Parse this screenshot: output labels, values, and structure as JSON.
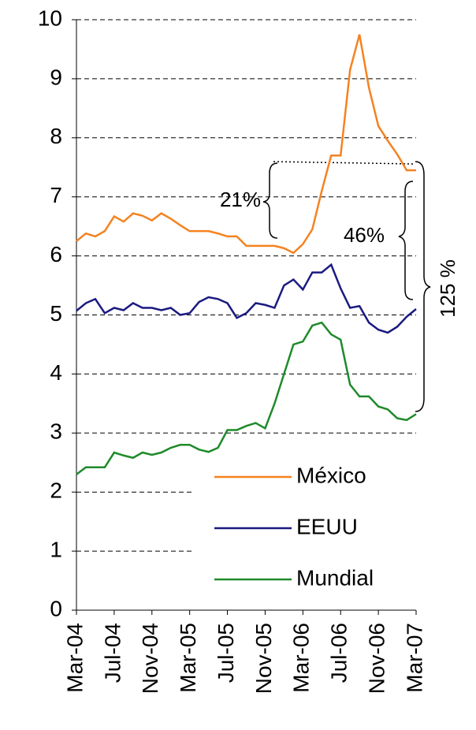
{
  "chart_data": {
    "type": "line",
    "categories": [
      "Mar-04",
      null,
      null,
      null,
      "Jul-04",
      null,
      null,
      null,
      "Nov-04",
      null,
      null,
      null,
      "Mar-05",
      null,
      null,
      null,
      "Jul-05",
      null,
      null,
      null,
      "Nov-05",
      null,
      null,
      null,
      "Mar-06",
      null,
      null,
      null,
      "Jul-06",
      null,
      null,
      null,
      "Nov-06",
      null,
      null,
      null,
      "Mar-07"
    ],
    "series": [
      {
        "name": "México",
        "color": "#f58220",
        "values": [
          6.25,
          6.38,
          6.33,
          6.42,
          6.67,
          6.58,
          6.72,
          6.68,
          6.6,
          6.72,
          6.63,
          6.52,
          6.42,
          6.42,
          6.42,
          6.38,
          6.33,
          6.33,
          6.17,
          6.17,
          6.17,
          6.17,
          6.13,
          6.05,
          6.2,
          6.45,
          7.1,
          7.7,
          7.7,
          9.15,
          9.75,
          8.85,
          8.2,
          7.95,
          7.72,
          7.45,
          7.45
        ]
      },
      {
        "name": "EEUU",
        "color": "#1a1a80",
        "values": [
          5.07,
          5.2,
          5.27,
          5.03,
          5.12,
          5.08,
          5.2,
          5.12,
          5.12,
          5.08,
          5.12,
          5.0,
          5.03,
          5.22,
          5.3,
          5.27,
          5.2,
          4.95,
          5.03,
          5.2,
          5.17,
          5.12,
          5.5,
          5.6,
          5.43,
          5.72,
          5.72,
          5.85,
          5.45,
          5.12,
          5.15,
          4.87,
          4.75,
          4.7,
          4.8,
          4.97,
          5.1
        ]
      },
      {
        "name": "Mundial",
        "color": "#1f8a2a",
        "values": [
          2.3,
          2.42,
          2.42,
          2.42,
          2.67,
          2.62,
          2.58,
          2.67,
          2.63,
          2.67,
          2.75,
          2.8,
          2.8,
          2.72,
          2.68,
          2.75,
          3.05,
          3.05,
          3.12,
          3.17,
          3.08,
          3.5,
          4.0,
          4.5,
          4.55,
          4.82,
          4.87,
          4.67,
          4.58,
          3.82,
          3.62,
          3.62,
          3.45,
          3.4,
          3.25,
          3.22,
          3.32
        ]
      }
    ],
    "ylim": [
      0,
      10
    ],
    "yticks": [
      0,
      1,
      2,
      3,
      4,
      5,
      6,
      7,
      8,
      9,
      10
    ],
    "grid": true,
    "legend": "lower right",
    "annotations": [
      "21%",
      "46%",
      "125 %"
    ]
  }
}
